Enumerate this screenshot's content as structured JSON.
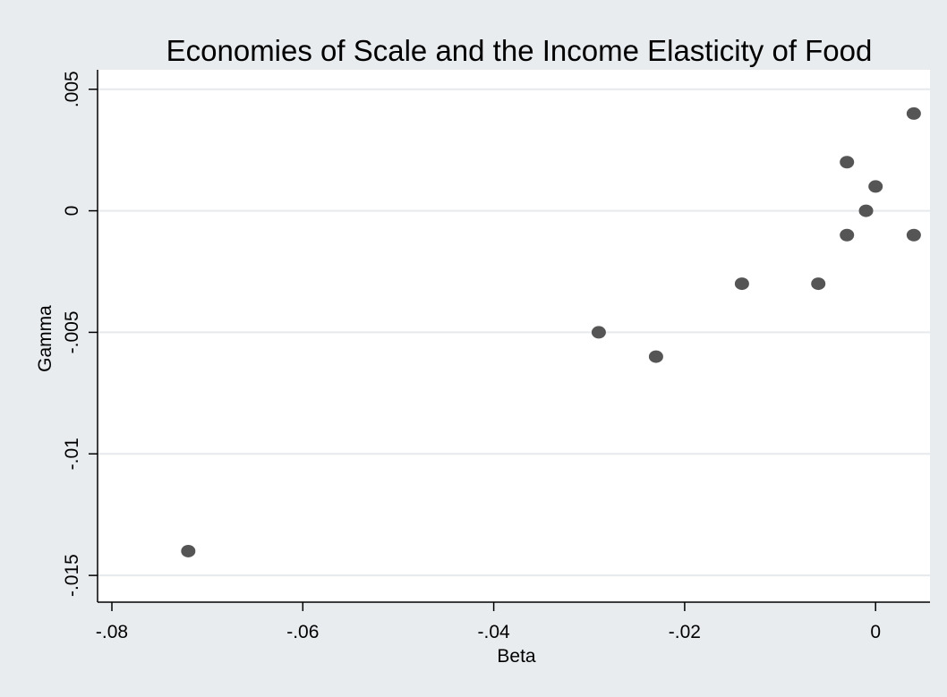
{
  "chart_data": {
    "type": "scatter",
    "title": "Economies of Scale and the Income Elasticity of Food",
    "xlabel": "Beta",
    "ylabel": "Gamma",
    "xlim": [
      -0.0815,
      0.0057
    ],
    "ylim": [
      -0.0161,
      0.0058
    ],
    "xticks": [
      -0.08,
      -0.06,
      -0.04,
      -0.02,
      0
    ],
    "xtick_labels": [
      "-.08",
      "-.06",
      "-.04",
      "-.02",
      "0"
    ],
    "yticks": [
      -0.015,
      -0.01,
      -0.005,
      0,
      0.005
    ],
    "ytick_labels": [
      "-.015",
      "-.01",
      "-.005",
      "0",
      ".005"
    ],
    "grid": "horizontal",
    "legend": "none",
    "points": [
      {
        "x": -0.072,
        "y": -0.014
      },
      {
        "x": -0.029,
        "y": -0.005
      },
      {
        "x": -0.023,
        "y": -0.006
      },
      {
        "x": -0.014,
        "y": -0.003
      },
      {
        "x": -0.006,
        "y": -0.003
      },
      {
        "x": -0.003,
        "y": 0.002
      },
      {
        "x": -0.003,
        "y": -0.001
      },
      {
        "x": -0.001,
        "y": 0.0
      },
      {
        "x": 0.0,
        "y": 0.001
      },
      {
        "x": 0.004,
        "y": 0.004
      },
      {
        "x": 0.004,
        "y": -0.001
      }
    ],
    "colors": {
      "background": "#e8ecef",
      "plot_area": "#ffffff",
      "marker": "#555555",
      "gridline": "#e6eaed",
      "axis": "#000000"
    }
  }
}
